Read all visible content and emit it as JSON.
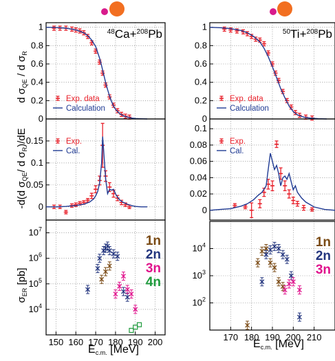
{
  "colors": {
    "exp": "#e8202a",
    "calc": "#1f3a93",
    "n1": "#7a4a14",
    "n2": "#23357e",
    "n3": "#e0128c",
    "n4": "#1e9a3c",
    "projectile": "#d81b8c",
    "target": "#f26f21"
  },
  "chart_data": [
    {
      "type": "line",
      "panel": "left-top",
      "reaction": {
        "pre": "48",
        "a": "Ca+",
        "pre2": "208",
        "b": "Pb"
      },
      "ylabel": "d σ QE / d σ R",
      "ylim": [
        0,
        1.05
      ],
      "xlim": [
        145,
        205
      ],
      "yticks": [
        "0",
        "0.2",
        "0.4",
        "0.6",
        "0.8",
        "1"
      ],
      "series": [
        {
          "name": "Exp. data",
          "kind": "points",
          "x": [
            149,
            152,
            155,
            158,
            160,
            162,
            164,
            166,
            168,
            170,
            172,
            173.5,
            175,
            177,
            179,
            181,
            183,
            185,
            187
          ],
          "y": [
            0.99,
            0.99,
            0.99,
            0.98,
            0.97,
            0.96,
            0.94,
            0.9,
            0.83,
            0.74,
            0.62,
            0.5,
            0.37,
            0.24,
            0.15,
            0.09,
            0.05,
            0.03,
            0.02
          ]
        },
        {
          "name": "Calculation",
          "kind": "line",
          "x": [
            145,
            150,
            155,
            158,
            161,
            164,
            166,
            168,
            170,
            172,
            173,
            174,
            175,
            176,
            177,
            178,
            179,
            180,
            182,
            184,
            186,
            188,
            190,
            193,
            196
          ],
          "y": [
            1.0,
            0.998,
            0.99,
            0.98,
            0.965,
            0.94,
            0.91,
            0.86,
            0.79,
            0.66,
            0.58,
            0.49,
            0.4,
            0.32,
            0.25,
            0.19,
            0.14,
            0.105,
            0.06,
            0.035,
            0.02,
            0.01,
            0.005,
            0.002,
            0.0
          ]
        }
      ]
    },
    {
      "type": "line",
      "panel": "right-top",
      "reaction": {
        "pre": "50",
        "a": "Ti+",
        "pre2": "208",
        "b": "Pb"
      },
      "ylim": [
        0,
        1.05
      ],
      "xlim": [
        160,
        220
      ],
      "yticks": [
        "0",
        "0.2",
        "0.4",
        "0.6",
        "0.8",
        "1"
      ],
      "series": [
        {
          "name": "Exp. data",
          "kind": "points",
          "x": [
            167,
            170,
            173,
            176,
            178,
            180,
            182,
            184,
            186,
            188,
            190,
            191.5,
            193,
            195,
            197,
            199,
            201,
            203,
            206,
            209
          ],
          "y": [
            0.98,
            0.97,
            0.96,
            0.95,
            0.93,
            0.9,
            0.87,
            0.86,
            0.82,
            0.72,
            0.6,
            0.5,
            0.42,
            0.3,
            0.2,
            0.13,
            0.07,
            0.04,
            0.02,
            0.01
          ]
        },
        {
          "name": "Calculation",
          "kind": "line",
          "x": [
            160,
            165,
            170,
            175,
            178,
            181,
            184,
            186,
            188,
            190,
            192,
            194,
            196,
            198,
            200,
            202,
            205,
            208,
            212,
            216
          ],
          "y": [
            1.0,
            0.995,
            0.985,
            0.965,
            0.94,
            0.9,
            0.84,
            0.77,
            0.68,
            0.57,
            0.45,
            0.33,
            0.23,
            0.14,
            0.08,
            0.045,
            0.02,
            0.01,
            0.003,
            0.0
          ]
        }
      ]
    },
    {
      "type": "line",
      "panel": "left-mid",
      "ylabel": "-d(d σ QE / d σ R)/dE",
      "ylim": [
        -0.03,
        0.2
      ],
      "xlim": [
        145,
        205
      ],
      "yticks": [
        "0",
        "0.05",
        "0.1",
        "0.15"
      ],
      "series": [
        {
          "name": "Exp.",
          "kind": "points",
          "x": [
            149,
            152,
            155,
            158,
            160,
            162,
            164,
            166,
            168,
            170,
            172,
            173.5,
            175,
            177,
            179,
            181,
            183,
            185,
            187
          ],
          "y": [
            0.0,
            0.0,
            -0.012,
            0.003,
            0.005,
            0.008,
            0.01,
            0.015,
            0.025,
            0.04,
            0.06,
            0.14,
            0.07,
            0.045,
            0.03,
            0.02,
            0.01,
            0.005,
            0.0
          ],
          "err": [
            0.003,
            0.003,
            0.003,
            0.003,
            0.003,
            0.003,
            0.004,
            0.004,
            0.006,
            0.008,
            0.01,
            0.05,
            0.012,
            0.01,
            0.008,
            0.006,
            0.005,
            0.004,
            0.003
          ]
        },
        {
          "name": "Cal.",
          "kind": "line",
          "x": [
            145,
            150,
            155,
            160,
            164,
            167,
            169,
            170,
            171,
            172,
            173,
            173.5,
            174,
            175,
            176,
            177,
            178,
            179,
            180,
            181,
            182,
            184,
            186,
            188,
            190,
            193,
            196
          ],
          "y": [
            0.0,
            0.0,
            0.001,
            0.003,
            0.006,
            0.011,
            0.018,
            0.025,
            0.035,
            0.055,
            0.1,
            0.16,
            0.13,
            0.065,
            0.03,
            0.04,
            0.038,
            0.04,
            0.03,
            0.022,
            0.016,
            0.01,
            0.006,
            0.003,
            0.001,
            0.0,
            0.0
          ]
        }
      ]
    },
    {
      "type": "line",
      "panel": "right-mid",
      "ylim": [
        -0.012,
        0.112
      ],
      "xlim": [
        160,
        220
      ],
      "yticks": [
        "0",
        "0.02",
        "0.04",
        "0.06",
        "0.08",
        "0.1"
      ],
      "series": [
        {
          "name": "Exp.",
          "kind": "points",
          "x": [
            172,
            177,
            180,
            184,
            186,
            188,
            190,
            192,
            194,
            196,
            198,
            200,
            202,
            205,
            209
          ],
          "y": [
            0.006,
            0.004,
            0.0,
            0.008,
            0.022,
            0.032,
            0.03,
            0.081,
            0.045,
            0.03,
            0.02,
            0.012,
            0.008,
            0.003,
            0.001
          ],
          "err": [
            0.002,
            0.002,
            0.009,
            0.005,
            0.005,
            0.006,
            0.006,
            0.004,
            0.007,
            0.006,
            0.005,
            0.004,
            0.003,
            0.003,
            0.002
          ]
        },
        {
          "name": "Cal.",
          "kind": "line",
          "x": [
            160,
            165,
            170,
            175,
            178,
            181,
            183,
            185,
            187,
            188,
            189,
            190,
            191,
            192,
            193,
            194,
            195,
            196,
            197,
            198,
            199,
            200,
            201,
            202,
            204,
            206,
            210,
            215,
            220
          ],
          "y": [
            0.0,
            0.001,
            0.002,
            0.005,
            0.008,
            0.013,
            0.018,
            0.022,
            0.03,
            0.05,
            0.07,
            0.06,
            0.05,
            0.055,
            0.045,
            0.03,
            0.04,
            0.042,
            0.038,
            0.045,
            0.035,
            0.025,
            0.03,
            0.022,
            0.015,
            0.01,
            0.004,
            0.001,
            0.0
          ]
        }
      ]
    },
    {
      "type": "scatter",
      "panel": "left-bottom",
      "ylabel": "σ ER [pb]",
      "xlabel": "E c.m. [MeV]",
      "xlim": [
        145,
        205
      ],
      "ylim_log10": [
        3.0,
        7.5
      ],
      "xticks": [
        150,
        160,
        170,
        180,
        190,
        200
      ],
      "yticks_exp": [
        4,
        5,
        6,
        7
      ],
      "series": [
        {
          "name": "1n",
          "color_key": "n1",
          "x": [
            173,
            175,
            177
          ],
          "y": [
            150000,
            300000,
            500000
          ]
        },
        {
          "name": "2n",
          "color_key": "n2",
          "x": [
            166,
            171,
            172,
            174,
            175,
            176,
            177,
            179,
            181,
            184,
            186
          ],
          "y": [
            60000,
            400000,
            1000000,
            2000000,
            2500000,
            3000000,
            2000000,
            1500000,
            1200000,
            50000,
            30000
          ]
        },
        {
          "name": "3n",
          "color_key": "n3",
          "x": [
            180,
            182,
            184,
            186,
            188,
            190
          ],
          "y": [
            40000,
            80000,
            200000,
            60000,
            40000,
            10000
          ]
        },
        {
          "name": "4n",
          "color_key": "n4",
          "x": [
            188,
            190,
            192
          ],
          "y": [
            1500,
            2000,
            2500
          ]
        }
      ]
    },
    {
      "type": "scatter",
      "panel": "right-bottom",
      "xlabel": "E c.m. [MeV]",
      "xlim": [
        160,
        220
      ],
      "ylim_log10": [
        1.0,
        5.0
      ],
      "xticks": [
        170,
        180,
        190,
        200,
        210
      ],
      "yticks_exp": [
        2,
        3,
        4
      ],
      "series": [
        {
          "name": "1n",
          "color_key": "n1",
          "x": [
            178,
            183,
            185,
            187,
            189,
            191,
            193,
            195
          ],
          "y": [
            15,
            3000,
            8000,
            10000,
            3000,
            2000,
            600,
            400
          ]
        },
        {
          "name": "2n",
          "color_key": "n2",
          "x": [
            185,
            187,
            189,
            191,
            193,
            195,
            197,
            199,
            203
          ],
          "y": [
            600,
            6000,
            9000,
            12000,
            10000,
            6000,
            4000,
            1000,
            30
          ]
        },
        {
          "name": "3n",
          "color_key": "n3",
          "x": [
            196,
            198,
            200,
            203
          ],
          "y": [
            300,
            500,
            600,
            300
          ]
        }
      ]
    }
  ]
}
